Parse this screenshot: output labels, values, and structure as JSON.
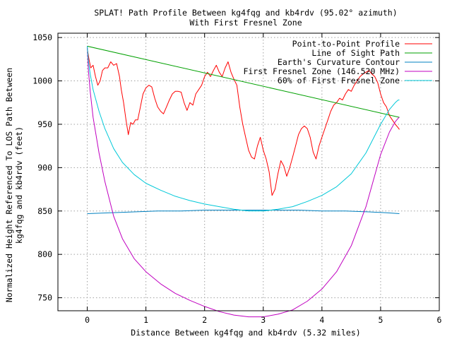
{
  "chart_data": {
    "type": "line",
    "title": "SPLAT! Path Profile Between kg4fqg and kb4rdv (95.02° azimuth)",
    "subtitle": "With First Fresnel Zone",
    "xlabel": "Distance Between kg4fqg and kb4rdv (5.32 miles)",
    "ylabel_lines": [
      "Normalized Height Referenced To LOS Path Between",
      "kg4fqg and kb4rdv (feet)"
    ],
    "xlim": [
      -0.5,
      6
    ],
    "ylim": [
      735,
      1055
    ],
    "x_ticks": [
      0,
      1,
      2,
      3,
      4,
      5,
      6
    ],
    "y_ticks": [
      750,
      800,
      850,
      900,
      950,
      1000,
      1050
    ],
    "grid": true,
    "legend_position": "top-right",
    "series": [
      {
        "name": "Point-to-Point Profile",
        "color": "#ff0000",
        "x": [
          0.0,
          0.03,
          0.06,
          0.1,
          0.14,
          0.18,
          0.22,
          0.26,
          0.3,
          0.35,
          0.4,
          0.45,
          0.5,
          0.55,
          0.58,
          0.62,
          0.66,
          0.7,
          0.74,
          0.78,
          0.82,
          0.86,
          0.9,
          0.95,
          1.0,
          1.05,
          1.1,
          1.15,
          1.2,
          1.25,
          1.3,
          1.35,
          1.4,
          1.45,
          1.5,
          1.55,
          1.6,
          1.65,
          1.7,
          1.75,
          1.8,
          1.85,
          1.9,
          1.95,
          2.0,
          2.05,
          2.1,
          2.15,
          2.2,
          2.25,
          2.3,
          2.35,
          2.4,
          2.45,
          2.5,
          2.55,
          2.6,
          2.65,
          2.7,
          2.75,
          2.8,
          2.85,
          2.9,
          2.95,
          3.0,
          3.05,
          3.1,
          3.15,
          3.2,
          3.25,
          3.3,
          3.35,
          3.4,
          3.45,
          3.5,
          3.55,
          3.6,
          3.65,
          3.7,
          3.75,
          3.8,
          3.85,
          3.9,
          3.95,
          4.0,
          4.05,
          4.1,
          4.15,
          4.2,
          4.25,
          4.3,
          4.35,
          4.4,
          4.45,
          4.5,
          4.55,
          4.6,
          4.65,
          4.7,
          4.75,
          4.8,
          4.85,
          4.9,
          4.95,
          5.0,
          5.05,
          5.1,
          5.15,
          5.2,
          5.25,
          5.3,
          5.32
        ],
        "values": [
          1038,
          1025,
          1015,
          1018,
          1005,
          995,
          1000,
          1012,
          1015,
          1015,
          1022,
          1018,
          1020,
          1005,
          990,
          975,
          955,
          938,
          952,
          950,
          955,
          955,
          968,
          985,
          992,
          995,
          993,
          980,
          970,
          965,
          962,
          970,
          978,
          985,
          988,
          988,
          987,
          975,
          966,
          975,
          972,
          985,
          990,
          995,
          1005,
          1010,
          1005,
          1012,
          1018,
          1010,
          1005,
          1015,
          1022,
          1010,
          1002,
          995,
          970,
          950,
          935,
          920,
          912,
          910,
          925,
          935,
          920,
          910,
          895,
          868,
          875,
          893,
          908,
          902,
          890,
          900,
          912,
          925,
          938,
          945,
          948,
          945,
          935,
          918,
          910,
          925,
          935,
          945,
          955,
          965,
          972,
          975,
          980,
          978,
          985,
          990,
          988,
          995,
          1000,
          1005,
          1008,
          1010,
          1012,
          1008,
          1005,
          998,
          985,
          975,
          970,
          960,
          955,
          950,
          946,
          944
        ]
      },
      {
        "name": "Line of Sight Path",
        "color": "#00a000",
        "x": [
          0,
          5.32
        ],
        "values": [
          1040,
          958
        ]
      },
      {
        "name": "Earth's Curvature Contour",
        "color": "#0080c0",
        "x": [
          0.0,
          0.4,
          0.8,
          1.2,
          1.6,
          2.0,
          2.4,
          2.8,
          3.2,
          3.6,
          4.0,
          4.4,
          4.8,
          5.1,
          5.32
        ],
        "values": [
          847,
          848,
          849,
          850,
          850,
          851,
          851,
          851,
          851,
          851,
          850,
          850,
          849,
          848,
          847
        ]
      },
      {
        "name": "First Fresnel Zone (146.520 MHz)",
        "color": "#c000c0",
        "x": [
          0.0,
          0.02,
          0.05,
          0.1,
          0.2,
          0.3,
          0.45,
          0.6,
          0.8,
          1.0,
          1.25,
          1.5,
          1.75,
          2.0,
          2.25,
          2.5,
          2.75,
          3.0,
          3.25,
          3.5,
          3.75,
          4.0,
          4.25,
          4.5,
          4.75,
          5.0,
          5.15,
          5.25,
          5.3,
          5.32
        ],
        "values": [
          1040,
          1012,
          988,
          958,
          917,
          884,
          844,
          818,
          795,
          780,
          766,
          755,
          747,
          740,
          734,
          730,
          728,
          728,
          731,
          736,
          746,
          760,
          780,
          810,
          855,
          915,
          941,
          953,
          957,
          958
        ]
      },
      {
        "name": "60% of First Fresnel Zone",
        "color": "#00c8d8",
        "x": [
          0.0,
          0.02,
          0.05,
          0.1,
          0.2,
          0.3,
          0.45,
          0.6,
          0.8,
          1.0,
          1.25,
          1.5,
          1.75,
          2.0,
          2.25,
          2.5,
          2.75,
          3.0,
          3.25,
          3.5,
          3.75,
          4.0,
          4.25,
          4.5,
          4.75,
          5.0,
          5.15,
          5.25,
          5.3,
          5.32
        ],
        "values": [
          1040,
          1023,
          1008,
          990,
          965,
          945,
          922,
          906,
          892,
          882,
          874,
          867,
          862,
          858,
          855,
          852,
          850,
          850,
          852,
          855,
          861,
          868,
          878,
          893,
          917,
          950,
          967,
          975,
          978,
          978
        ]
      }
    ]
  }
}
